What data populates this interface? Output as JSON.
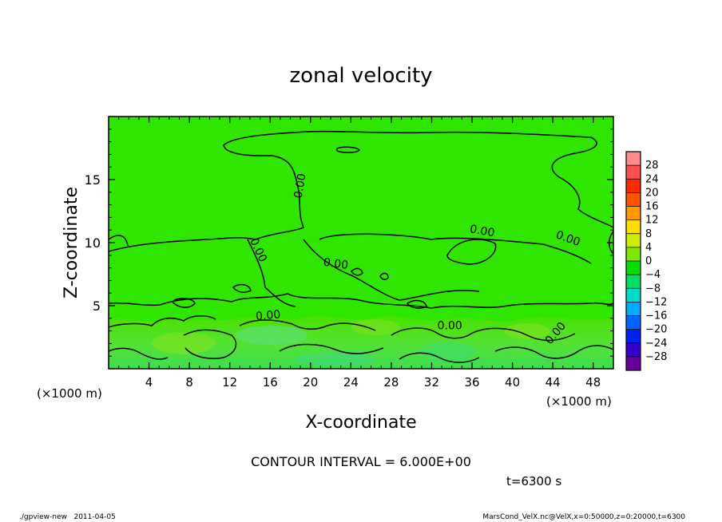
{
  "chart_data": {
    "type": "contour",
    "title": "zonal velocity",
    "xlabel": "X-coordinate",
    "ylabel": "Z-coordinate",
    "x_unit_left": "(×1000 m)",
    "x_unit_right": "(×1000 m)",
    "x_ticks": [
      4,
      8,
      12,
      16,
      20,
      24,
      28,
      32,
      36,
      40,
      44,
      48
    ],
    "y_ticks": [
      5,
      10,
      15
    ],
    "xlim": [
      0,
      50
    ],
    "ylim": [
      0,
      20
    ],
    "contour_interval_text": "CONTOUR INTERVAL = 6.000E+00",
    "contour_labels": [
      {
        "text": "0.00",
        "x": 19.0,
        "y": 14.5,
        "rot": -80
      },
      {
        "text": "0.00",
        "x": 14.8,
        "y": 9.4,
        "rot": 65
      },
      {
        "text": "0.00",
        "x": 22.5,
        "y": 8.3,
        "rot": 8
      },
      {
        "text": "0.00",
        "x": 37.0,
        "y": 10.9,
        "rot": 10
      },
      {
        "text": "0.00",
        "x": 45.5,
        "y": 10.3,
        "rot": 20
      },
      {
        "text": "0.00",
        "x": 15.8,
        "y": 4.2,
        "rot": -5
      },
      {
        "text": "0.00",
        "x": 33.8,
        "y": 3.4,
        "rot": 0
      },
      {
        "text": "0.00",
        "x": 44.3,
        "y": 2.8,
        "rot": -50
      }
    ],
    "colorbar": {
      "levels": [
        28,
        24,
        20,
        16,
        12,
        8,
        4,
        0,
        -4,
        -8,
        -12,
        -16,
        -20,
        -24,
        -28
      ],
      "colors": [
        "#ff8a8a",
        "#ff5050",
        "#ff2a00",
        "#ff5500",
        "#ff9900",
        "#ffdd00",
        "#ccee00",
        "#7fe800",
        "#00dd00",
        "#00dd66",
        "#00dccc",
        "#00aaff",
        "#0066ff",
        "#0022ee",
        "#3300cc",
        "#660099"
      ]
    },
    "time_label": "t=6300 s",
    "footer_left": "./gpview-new   2011-04-05",
    "footer_right": "MarsCond_VelX.nc@VelX,x=0:50000,z=0:20000,t=6300"
  }
}
